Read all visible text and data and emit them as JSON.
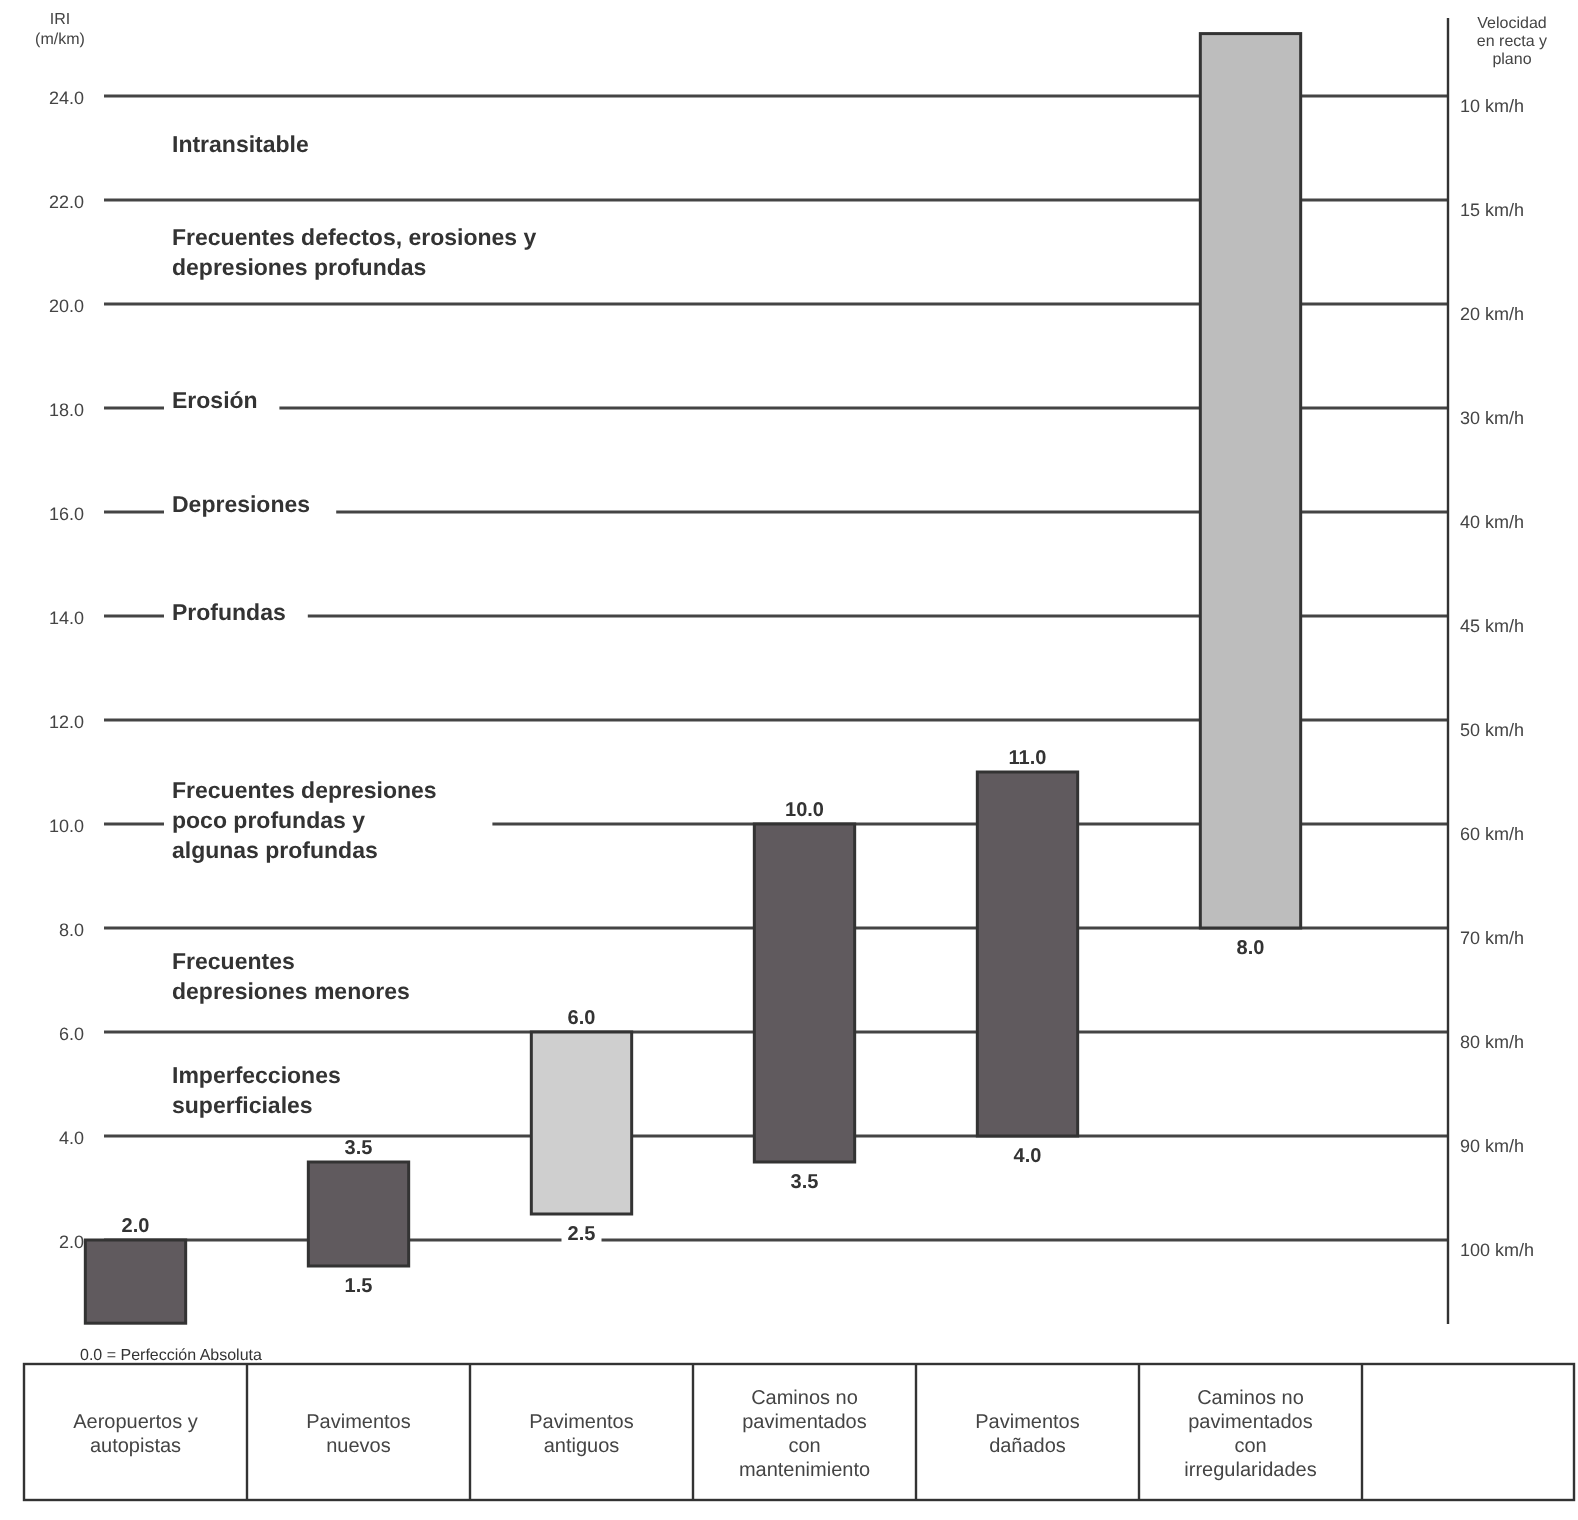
{
  "chart_data": {
    "type": "bar",
    "ylabel": "IRI\n(m/km)",
    "y2label": "Velocidad\nen recta y\nplano",
    "categories": [
      "Aeropuertos y autopistas",
      "Pavimentos nuevos",
      "Pavimentos antiguos",
      "Caminos no pavimentados con mantenimiento",
      "Pavimentos dañados",
      "Caminos no pavimentados con irregularidades"
    ],
    "base": [
      0.4,
      1.5,
      2.5,
      3.5,
      4.0,
      8.0
    ],
    "values": [
      1.6,
      2.0,
      3.5,
      6.5,
      7.0,
      17.2
    ],
    "colors": [
      "#605a5e",
      "#605a5e",
      "#cfcfcf",
      "#605a5e",
      "#605a5e",
      "#bdbdbd"
    ],
    "value_labels": [
      "2.0",
      "3.5",
      "6.0",
      "10.0",
      "11.0",
      null
    ],
    "ylim": [
      0,
      25.5
    ],
    "yticks": [
      {
        "value": 2,
        "label": "2.0"
      },
      {
        "value": 4,
        "label": "4.0"
      },
      {
        "value": 6,
        "label": "6.0"
      },
      {
        "value": 8,
        "label": "8.0"
      },
      {
        "value": 10,
        "label": "10.0"
      },
      {
        "value": 12,
        "label": "12.0"
      },
      {
        "value": 14,
        "label": "14.0"
      },
      {
        "value": 16,
        "label": "16.0"
      },
      {
        "value": 18,
        "label": "18.0"
      },
      {
        "value": 20,
        "label": "20.0"
      },
      {
        "value": 22,
        "label": "22.0"
      },
      {
        "value": 24,
        "label": "24.0"
      }
    ],
    "ref_lines": [
      {
        "axis": "y",
        "value": 2,
        "label": "100 km/h"
      },
      {
        "axis": "y",
        "value": 4,
        "label": "90 km/h"
      },
      {
        "axis": "y",
        "value": 6,
        "label": "80 km/h"
      },
      {
        "axis": "y",
        "value": 8,
        "label": "70 km/h"
      },
      {
        "axis": "y",
        "value": 10,
        "label": "60 km/h"
      },
      {
        "axis": "y",
        "value": 12,
        "label": "50 km/h"
      },
      {
        "axis": "y",
        "value": 14,
        "label": "45 km/h"
      },
      {
        "axis": "y",
        "value": 16,
        "label": "40 km/h"
      },
      {
        "axis": "y",
        "value": 18,
        "label": "30 km/h"
      },
      {
        "axis": "y",
        "value": 20,
        "label": "20 km/h"
      },
      {
        "axis": "y",
        "value": 22,
        "label": "15 km/h"
      },
      {
        "axis": "y",
        "value": 24,
        "label": "10 km/h"
      }
    ],
    "annotations": [
      "Intransitable",
      "Frecuentes defectos, erosiones y\ndepresiones profundas",
      "Erosión",
      "Depresiones",
      "Profundas",
      "Frecuentes depresiones\npoco profundas y\nalgunas profundas",
      "Frecuentes\ndepresiones menores",
      "Imperfecciones\nsuperficiales",
      "0.0 = Perfección Absoluta",
      {
        "text": "1.5",
        "x": "Pavimentos nuevos",
        "y": 1.5
      },
      {
        "text": "2.5",
        "x": "Pavimentos antiguos",
        "y": 2.5
      },
      {
        "text": "3.5",
        "x": "Caminos no pavimentados con mantenimiento",
        "y": 3.5
      },
      {
        "text": "4.0",
        "x": "Pavimentos dañados",
        "y": 4.0
      },
      {
        "text": "8.0",
        "x": "Caminos no pavimentados con irregularidades",
        "y": 8.0
      }
    ]
  }
}
